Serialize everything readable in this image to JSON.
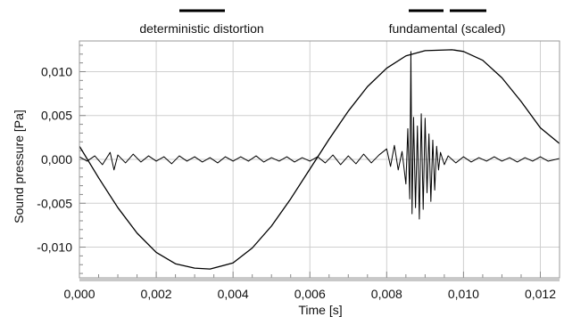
{
  "chart_data": {
    "type": "line",
    "title": "",
    "xlabel": "Time [s]",
    "ylabel": "Sound pressure [Pa]",
    "xlim": [
      0,
      0.0125
    ],
    "ylim": [
      -0.0135,
      0.0135
    ],
    "grid": true,
    "xticks": [
      0,
      0.002,
      0.004,
      0.006,
      0.008,
      0.01,
      0.012
    ],
    "xtick_labels": [
      "0,000",
      "0,002",
      "0,004",
      "0,006",
      "0,008",
      "0,010",
      "0,012"
    ],
    "yticks": [
      0.01,
      0.005,
      0.0,
      -0.005,
      -0.01
    ],
    "ytick_labels": [
      "0,010",
      "0,005",
      "0,000",
      "-0,005",
      "-0,010"
    ],
    "legend_placement": "top",
    "legend": [
      {
        "label": "deterministic distortion",
        "style": "solid"
      },
      {
        "label": "fundamental (scaled)",
        "style": "dashed"
      }
    ],
    "colors": {
      "line": "#000000",
      "grid": "#cfcfcf",
      "frame": "#9a9a9a",
      "bottom_band": "#c8c8c8"
    },
    "series": [
      {
        "name": "fundamental (scaled)",
        "x": [
          0,
          0.0005,
          0.001,
          0.0015,
          0.002,
          0.0025,
          0.003,
          0.0034,
          0.004,
          0.0045,
          0.005,
          0.0055,
          0.006,
          0.0065,
          0.007,
          0.0075,
          0.008,
          0.0085,
          0.009,
          0.0097,
          0.01,
          0.0105,
          0.011,
          0.0115,
          0.012,
          0.0125
        ],
        "values": [
          0.0015,
          -0.0021,
          -0.0055,
          -0.0084,
          -0.0106,
          -0.0119,
          -0.0124,
          -0.0125,
          -0.0118,
          -0.0101,
          -0.0076,
          -0.0045,
          -0.0011,
          0.0023,
          0.0055,
          0.0083,
          0.0104,
          0.0118,
          0.0124,
          0.0125,
          0.0123,
          0.0113,
          0.0093,
          0.0066,
          0.0036,
          0.0018
        ]
      },
      {
        "name": "deterministic distortion",
        "x": [
          0,
          0.0002,
          0.0004,
          0.0006,
          0.0008,
          0.0009,
          0.001,
          0.0012,
          0.0014,
          0.0016,
          0.0018,
          0.002,
          0.0022,
          0.0024,
          0.0026,
          0.0028,
          0.003,
          0.0032,
          0.0034,
          0.0036,
          0.0038,
          0.004,
          0.0042,
          0.0044,
          0.0046,
          0.0048,
          0.005,
          0.0052,
          0.0054,
          0.0056,
          0.0058,
          0.006,
          0.0062,
          0.0064,
          0.0066,
          0.0068,
          0.007,
          0.0072,
          0.0074,
          0.0076,
          0.0078,
          0.008,
          0.0081,
          0.0082,
          0.0083,
          0.0084,
          0.0085,
          0.00855,
          0.0086,
          0.00863,
          0.00866,
          0.0087,
          0.00875,
          0.0088,
          0.00885,
          0.0089,
          0.00895,
          0.009,
          0.00905,
          0.0091,
          0.00915,
          0.0092,
          0.00925,
          0.0093,
          0.00935,
          0.0094,
          0.0095,
          0.0096,
          0.0098,
          0.01,
          0.0102,
          0.0104,
          0.0106,
          0.0108,
          0.011,
          0.0112,
          0.0114,
          0.0116,
          0.0118,
          0.012,
          0.0122,
          0.0125
        ],
        "values": [
          0.0003,
          -0.0002,
          0.0004,
          -0.0006,
          0.0008,
          -0.0012,
          0.0005,
          -0.0004,
          0.0006,
          -0.0003,
          0.0004,
          -0.0002,
          0.0003,
          -0.0005,
          0.0004,
          -0.0002,
          0.0003,
          -0.0003,
          0.0002,
          -0.0004,
          0.0003,
          -0.0002,
          0.0003,
          -0.0002,
          0.0004,
          -0.0003,
          0.0002,
          -0.0002,
          0.0003,
          -0.0003,
          0.0002,
          -0.0002,
          0.0003,
          -0.0004,
          0.0005,
          -0.0006,
          0.0004,
          -0.0005,
          0.0006,
          -0.0004,
          0.0005,
          0.0012,
          -0.0008,
          0.0016,
          -0.0012,
          0.0009,
          -0.0028,
          0.0035,
          -0.0045,
          0.0123,
          -0.0062,
          0.0048,
          -0.0055,
          0.0038,
          -0.0068,
          0.0052,
          -0.0057,
          0.0047,
          -0.0038,
          0.0029,
          -0.0048,
          0.0022,
          -0.0035,
          0.0015,
          -0.0012,
          0.0008,
          -0.0006,
          0.0004,
          -0.0004,
          0.0003,
          -0.0003,
          0.0002,
          -0.0002,
          0.0003,
          -0.0002,
          0.0002,
          -0.0003,
          0.0002,
          -0.0002,
          0.0003,
          -0.0002,
          0.0001
        ]
      }
    ]
  }
}
